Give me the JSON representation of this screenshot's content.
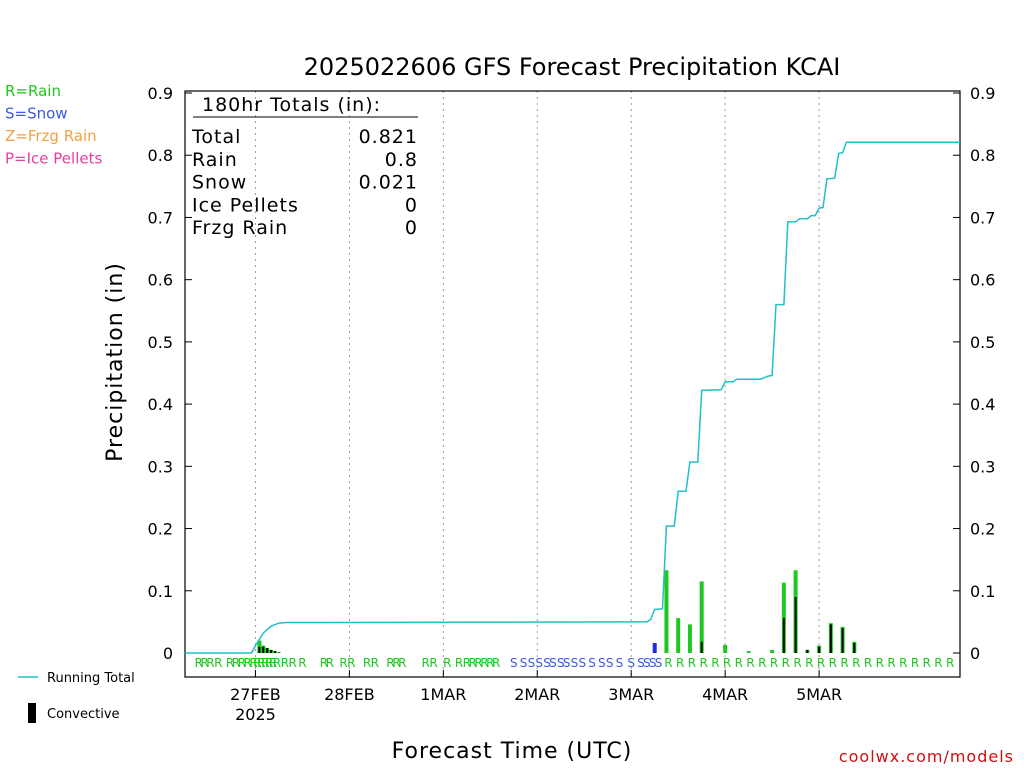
{
  "chart_data": {
    "type": "bar",
    "title": "2025022606 GFS Forecast Precipitation KCAI",
    "xlabel": "Forecast Time (UTC)",
    "ylabel": "Precipitation (in)",
    "ylim": [
      0,
      0.9
    ],
    "y_ticks": [
      "0",
      "0.1",
      "0.2",
      "0.3",
      "0.4",
      "0.5",
      "0.6",
      "0.7",
      "0.8",
      "0.9"
    ],
    "x_range_hours": [
      -18,
      180
    ],
    "x_ticks": [
      {
        "label": "27FEB",
        "sub": "2025",
        "hour": 0
      },
      {
        "label": "28FEB",
        "sub": "",
        "hour": 24
      },
      {
        "label": "1MAR",
        "sub": "",
        "hour": 48
      },
      {
        "label": "2MAR",
        "sub": "",
        "hour": 72
      },
      {
        "label": "3MAR",
        "sub": "",
        "hour": 96
      },
      {
        "label": "4MAR",
        "sub": "",
        "hour": 120
      },
      {
        "label": "5MAR",
        "sub": "",
        "hour": 144
      }
    ],
    "summary": {
      "header": "180hr Totals (in):",
      "rows": [
        {
          "label": "Total",
          "value": "0.821"
        },
        {
          "label": "Rain",
          "value": "0.8"
        },
        {
          "label": "Snow",
          "value": "0.021"
        },
        {
          "label": "Ice Pellets",
          "value": "0"
        },
        {
          "label": "Frzg Rain",
          "value": "0"
        }
      ]
    },
    "type_legend": [
      {
        "text": "R=Rain",
        "color": "#1ec81e"
      },
      {
        "text": "S=Snow",
        "color": "#3a5ae6"
      },
      {
        "text": "Z=Frzg Rain",
        "color": "#f0a040"
      },
      {
        "text": "P=Ice Pellets",
        "color": "#e63ca0"
      }
    ],
    "series_legend": [
      {
        "name": "Running Total",
        "color": "#20c0c8"
      },
      {
        "name": "Convective",
        "color": "#000000"
      }
    ],
    "bars": [
      {
        "hour": 1,
        "total": 0.02,
        "conv": 0.01,
        "ptype": "R"
      },
      {
        "hour": 2,
        "total": 0.012,
        "conv": 0.01,
        "ptype": "R"
      },
      {
        "hour": 3,
        "total": 0.008,
        "conv": 0.008,
        "ptype": "R"
      },
      {
        "hour": 4,
        "total": 0.005,
        "conv": 0.005,
        "ptype": "R"
      },
      {
        "hour": 5,
        "total": 0.003,
        "conv": 0.003,
        "ptype": "R"
      },
      {
        "hour": 6,
        "total": 0.001,
        "conv": 0.001,
        "ptype": "R"
      },
      {
        "hour": 102,
        "total": 0.016,
        "conv": 0.0,
        "ptype": "S"
      },
      {
        "hour": 105,
        "total": 0.133,
        "conv": 0.0,
        "ptype": "R"
      },
      {
        "hour": 108,
        "total": 0.056,
        "conv": 0.0,
        "ptype": "R"
      },
      {
        "hour": 111,
        "total": 0.046,
        "conv": 0.0,
        "ptype": "R"
      },
      {
        "hour": 114,
        "total": 0.115,
        "conv": 0.018,
        "ptype": "R"
      },
      {
        "hour": 120,
        "total": 0.013,
        "conv": 0.0,
        "ptype": "R"
      },
      {
        "hour": 126,
        "total": 0.003,
        "conv": 0.0,
        "ptype": "R"
      },
      {
        "hour": 132,
        "total": 0.005,
        "conv": 0.0,
        "ptype": "R"
      },
      {
        "hour": 135,
        "total": 0.113,
        "conv": 0.056,
        "ptype": "R"
      },
      {
        "hour": 138,
        "total": 0.133,
        "conv": 0.09,
        "ptype": "R"
      },
      {
        "hour": 141,
        "total": 0.005,
        "conv": 0.005,
        "ptype": "R"
      },
      {
        "hour": 144,
        "total": 0.012,
        "conv": 0.01,
        "ptype": "R"
      },
      {
        "hour": 147,
        "total": 0.048,
        "conv": 0.046,
        "ptype": "R"
      },
      {
        "hour": 150,
        "total": 0.042,
        "conv": 0.04,
        "ptype": "R"
      },
      {
        "hour": 153,
        "total": 0.018,
        "conv": 0.016,
        "ptype": "R"
      }
    ],
    "running_total": [
      {
        "hour": -18,
        "value": 0
      },
      {
        "hour": -1,
        "value": 0
      },
      {
        "hour": 0,
        "value": 0.012
      },
      {
        "hour": 2,
        "value": 0.032
      },
      {
        "hour": 4,
        "value": 0.043
      },
      {
        "hour": 6,
        "value": 0.048
      },
      {
        "hour": 8,
        "value": 0.049
      },
      {
        "hour": 100,
        "value": 0.05
      },
      {
        "hour": 101,
        "value": 0.054
      },
      {
        "hour": 102,
        "value": 0.07
      },
      {
        "hour": 104,
        "value": 0.071
      },
      {
        "hour": 105,
        "value": 0.204
      },
      {
        "hour": 107,
        "value": 0.204
      },
      {
        "hour": 108,
        "value": 0.26
      },
      {
        "hour": 110,
        "value": 0.26
      },
      {
        "hour": 111,
        "value": 0.307
      },
      {
        "hour": 113,
        "value": 0.307
      },
      {
        "hour": 114,
        "value": 0.422
      },
      {
        "hour": 119,
        "value": 0.423
      },
      {
        "hour": 120,
        "value": 0.436
      },
      {
        "hour": 122,
        "value": 0.436
      },
      {
        "hour": 123,
        "value": 0.44
      },
      {
        "hour": 128,
        "value": 0.44
      },
      {
        "hour": 129,
        "value": 0.44
      },
      {
        "hour": 131,
        "value": 0.445
      },
      {
        "hour": 132,
        "value": 0.446
      },
      {
        "hour": 133,
        "value": 0.56
      },
      {
        "hour": 135,
        "value": 0.56
      },
      {
        "hour": 136,
        "value": 0.693
      },
      {
        "hour": 138,
        "value": 0.693
      },
      {
        "hour": 139,
        "value": 0.698
      },
      {
        "hour": 141,
        "value": 0.698
      },
      {
        "hour": 142,
        "value": 0.703
      },
      {
        "hour": 143,
        "value": 0.703
      },
      {
        "hour": 144,
        "value": 0.715
      },
      {
        "hour": 145,
        "value": 0.716
      },
      {
        "hour": 146,
        "value": 0.762
      },
      {
        "hour": 148,
        "value": 0.763
      },
      {
        "hour": 149,
        "value": 0.803
      },
      {
        "hour": 150,
        "value": 0.804
      },
      {
        "hour": 151,
        "value": 0.821
      },
      {
        "hour": 180,
        "value": 0.821
      }
    ],
    "ptype_markers": [
      {
        "hour": -14.5,
        "type": "R"
      },
      {
        "hour": -13,
        "type": "R"
      },
      {
        "hour": -11.5,
        "type": "R"
      },
      {
        "hour": -9.5,
        "type": "R"
      },
      {
        "hour": -6.5,
        "type": "R"
      },
      {
        "hour": -5,
        "type": "R"
      },
      {
        "hour": -3.5,
        "type": "R"
      },
      {
        "hour": -2,
        "type": "R"
      },
      {
        "hour": -0.5,
        "type": "R"
      },
      {
        "hour": 0.5,
        "type": "R"
      },
      {
        "hour": 1.5,
        "type": "R"
      },
      {
        "hour": 2.5,
        "type": "R"
      },
      {
        "hour": 3.5,
        "type": "R"
      },
      {
        "hour": 4.5,
        "type": "R"
      },
      {
        "hour": 5.5,
        "type": "R"
      },
      {
        "hour": 7.5,
        "type": "R"
      },
      {
        "hour": 9.5,
        "type": "R"
      },
      {
        "hour": 12,
        "type": "R"
      },
      {
        "hour": 17.5,
        "type": "R"
      },
      {
        "hour": 19,
        "type": "R"
      },
      {
        "hour": 22.5,
        "type": "R"
      },
      {
        "hour": 24.5,
        "type": "R"
      },
      {
        "hour": 28.5,
        "type": "R"
      },
      {
        "hour": 30.5,
        "type": "R"
      },
      {
        "hour": 34.5,
        "type": "R"
      },
      {
        "hour": 36,
        "type": "R"
      },
      {
        "hour": 37.5,
        "type": "R"
      },
      {
        "hour": 43.5,
        "type": "R"
      },
      {
        "hour": 45.5,
        "type": "R"
      },
      {
        "hour": 49,
        "type": "R"
      },
      {
        "hour": 52,
        "type": "R"
      },
      {
        "hour": 54,
        "type": "R"
      },
      {
        "hour": 55.5,
        "type": "R"
      },
      {
        "hour": 57,
        "type": "R"
      },
      {
        "hour": 58.5,
        "type": "R"
      },
      {
        "hour": 60,
        "type": "R"
      },
      {
        "hour": 61.5,
        "type": "R"
      },
      {
        "hour": 66,
        "type": "S"
      },
      {
        "hour": 68.5,
        "type": "S"
      },
      {
        "hour": 70.5,
        "type": "S"
      },
      {
        "hour": 72.5,
        "type": "S"
      },
      {
        "hour": 74.5,
        "type": "S"
      },
      {
        "hour": 76,
        "type": "S"
      },
      {
        "hour": 78,
        "type": "S"
      },
      {
        "hour": 79.5,
        "type": "S"
      },
      {
        "hour": 81.5,
        "type": "S"
      },
      {
        "hour": 83.5,
        "type": "S"
      },
      {
        "hour": 86,
        "type": "S"
      },
      {
        "hour": 88.5,
        "type": "S"
      },
      {
        "hour": 90.5,
        "type": "S"
      },
      {
        "hour": 93,
        "type": "S"
      },
      {
        "hour": 96,
        "type": "S"
      },
      {
        "hour": 98.5,
        "type": "S"
      },
      {
        "hour": 100,
        "type": "S"
      },
      {
        "hour": 101.5,
        "type": "S"
      },
      {
        "hour": 103,
        "type": "S"
      },
      {
        "hour": 105.5,
        "type": "R"
      },
      {
        "hour": 108.5,
        "type": "R"
      },
      {
        "hour": 111.5,
        "type": "R"
      },
      {
        "hour": 114.5,
        "type": "R"
      },
      {
        "hour": 117.5,
        "type": "R"
      },
      {
        "hour": 120.5,
        "type": "R"
      },
      {
        "hour": 123.5,
        "type": "R"
      },
      {
        "hour": 126.5,
        "type": "R"
      },
      {
        "hour": 129.5,
        "type": "R"
      },
      {
        "hour": 132.5,
        "type": "R"
      },
      {
        "hour": 135.5,
        "type": "R"
      },
      {
        "hour": 138.5,
        "type": "R"
      },
      {
        "hour": 141.5,
        "type": "R"
      },
      {
        "hour": 144.5,
        "type": "R"
      },
      {
        "hour": 147.5,
        "type": "R"
      },
      {
        "hour": 150.5,
        "type": "R"
      },
      {
        "hour": 153.5,
        "type": "R"
      },
      {
        "hour": 156.5,
        "type": "R"
      },
      {
        "hour": 159.5,
        "type": "R"
      },
      {
        "hour": 162.5,
        "type": "R"
      },
      {
        "hour": 165.5,
        "type": "R"
      },
      {
        "hour": 168.5,
        "type": "R"
      },
      {
        "hour": 171.5,
        "type": "R"
      },
      {
        "hour": 174.5,
        "type": "R"
      },
      {
        "hour": 177.5,
        "type": "R"
      }
    ],
    "colors": {
      "rain": "#1ec81e",
      "snow": "#2828dc",
      "convective": "#000000",
      "running_total": "#20c0c8",
      "gridline": "#9a9a9a"
    },
    "grid": "vertical dotted at day boundaries"
  },
  "watermark": "coolwx.com/models"
}
